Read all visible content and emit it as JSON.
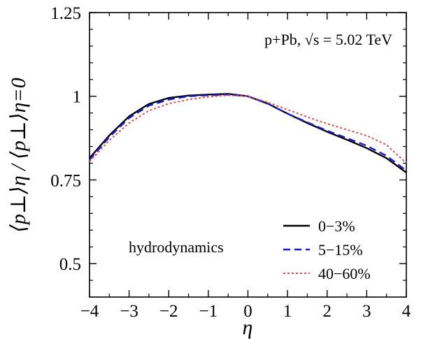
{
  "chart_data": {
    "type": "line",
    "xlabel": "η",
    "ylabel": "⟨p⊥⟩η / ⟨p⊥⟩η=0",
    "xlim": [
      -4,
      4
    ],
    "ylim": [
      0.4,
      1.25
    ],
    "x_ticks": [
      -4,
      -3,
      -2,
      -1,
      0,
      1,
      2,
      3,
      4
    ],
    "x_tick_labels": [
      "−4",
      "−3",
      "−2",
      "−1",
      "0",
      "1",
      "2",
      "3",
      "4"
    ],
    "y_ticks": [
      0.5,
      0.75,
      1.0,
      1.25
    ],
    "y_tick_labels": [
      "0.5",
      "0.75",
      "1",
      "1.25"
    ],
    "annotation_system": "p+Pb, √s = 5.02 TeV",
    "annotation_model": "hydrodynamics",
    "legend_position": "bottom-right",
    "grid": false,
    "x": [
      -4.0,
      -3.5,
      -3.0,
      -2.5,
      -2.0,
      -1.5,
      -1.0,
      -0.5,
      0.0,
      0.5,
      1.0,
      1.5,
      2.0,
      2.5,
      3.0,
      3.5,
      4.0
    ],
    "series": [
      {
        "name": "0−3%",
        "color": "#000000",
        "style": "solid",
        "values": [
          0.815,
          0.883,
          0.94,
          0.977,
          0.995,
          1.002,
          1.005,
          1.007,
          1.0,
          0.978,
          0.948,
          0.92,
          0.894,
          0.87,
          0.845,
          0.815,
          0.772
        ]
      },
      {
        "name": "5−15%",
        "color": "#1a1ad6",
        "style": "dashed",
        "values": [
          0.81,
          0.878,
          0.935,
          0.972,
          0.99,
          1.0,
          1.003,
          1.005,
          1.0,
          0.978,
          0.948,
          0.922,
          0.897,
          0.875,
          0.852,
          0.822,
          0.778
        ]
      },
      {
        "name": "40−60%",
        "color": "#d9544f",
        "style": "dotted",
        "values": [
          0.805,
          0.868,
          0.92,
          0.957,
          0.978,
          0.99,
          0.998,
          1.003,
          1.0,
          0.982,
          0.96,
          0.938,
          0.918,
          0.9,
          0.882,
          0.855,
          0.8
        ]
      }
    ]
  }
}
